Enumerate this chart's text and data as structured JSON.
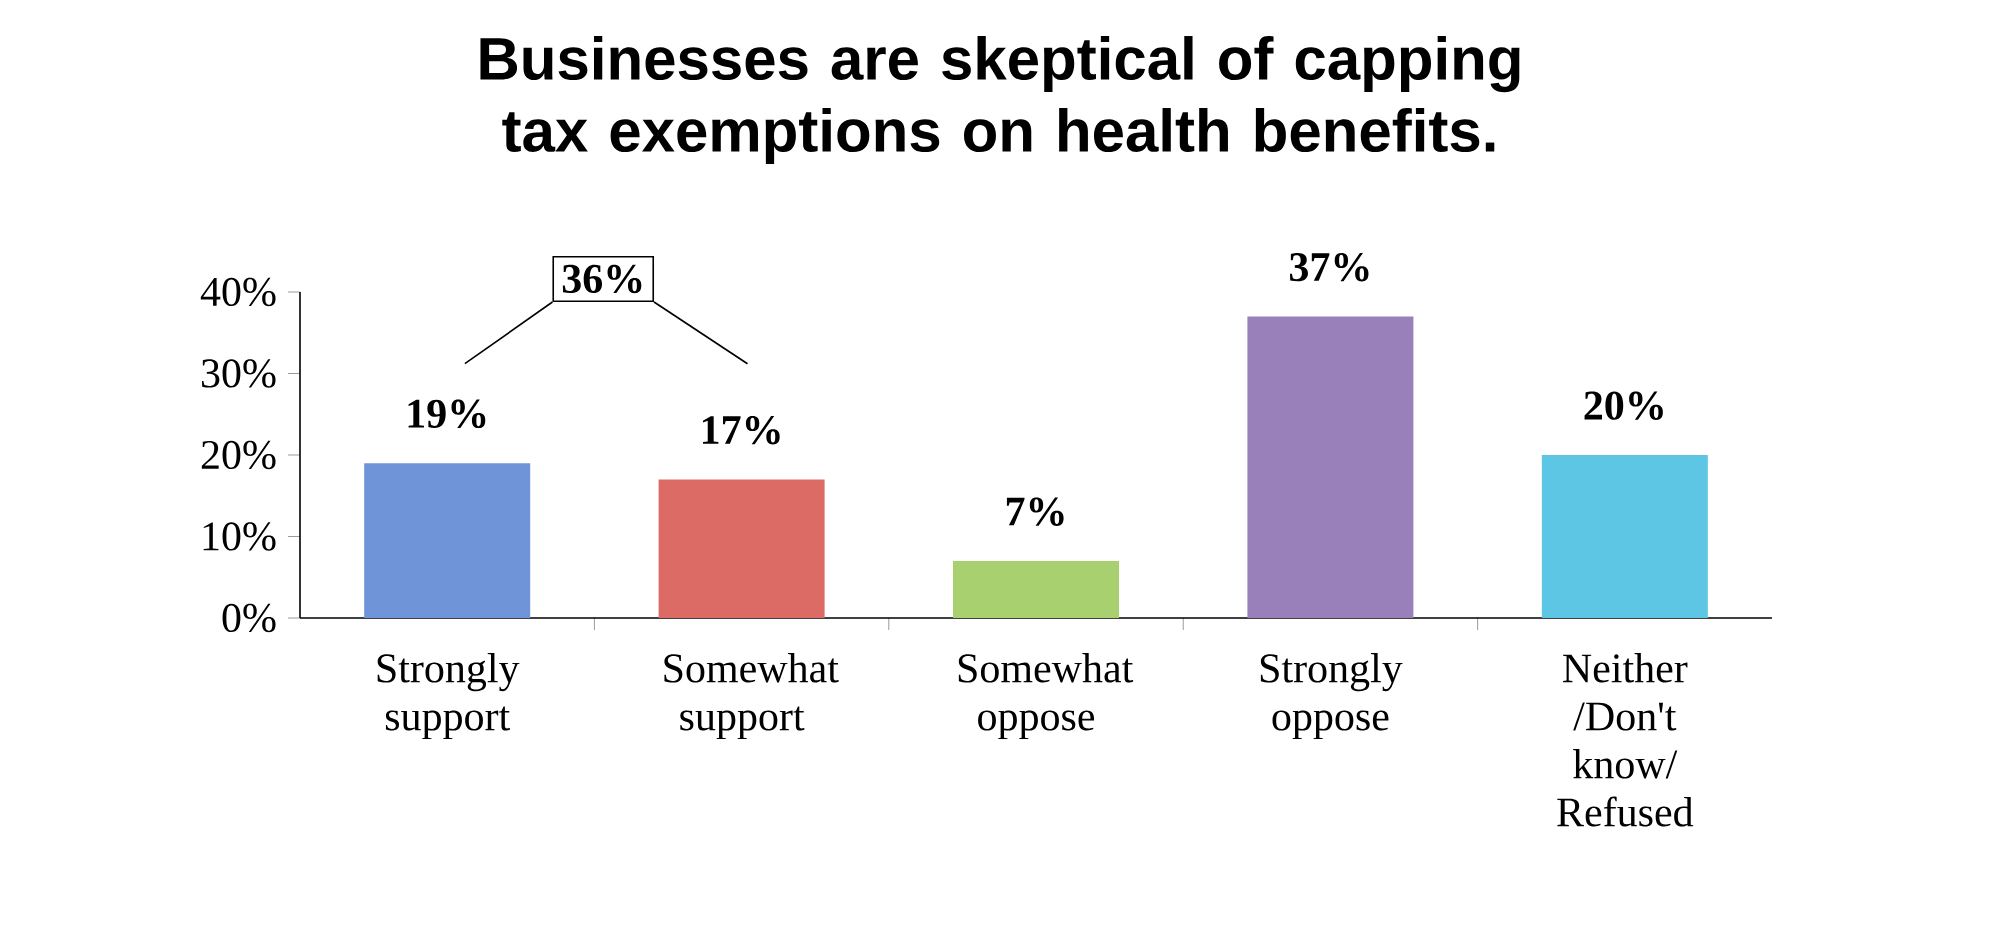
{
  "chart_data": {
    "type": "bar",
    "title": "Businesses are skeptical of capping tax exemptions on health benefits.",
    "categories": [
      "Strongly support",
      "Somewhat support",
      "Somewhat oppose",
      "Strongly oppose",
      "Neither /Don't know/ Refused"
    ],
    "values": [
      19,
      17,
      7,
      37,
      20
    ],
    "value_labels": [
      "19%",
      "17%",
      "7%",
      "37%",
      "20%"
    ],
    "colors": [
      "#6f95d8",
      "#dc6b66",
      "#a9d06e",
      "#9a80bb",
      "#5cc6e4"
    ],
    "ylim": [
      0,
      40
    ],
    "yticks": [
      {
        "value": 0,
        "label": "0%"
      },
      {
        "value": 10,
        "label": "10%"
      },
      {
        "value": 20,
        "label": "20%"
      },
      {
        "value": 30,
        "label": "30%"
      },
      {
        "value": 40,
        "label": "40%"
      }
    ],
    "annotations": [
      "36%"
    ]
  }
}
